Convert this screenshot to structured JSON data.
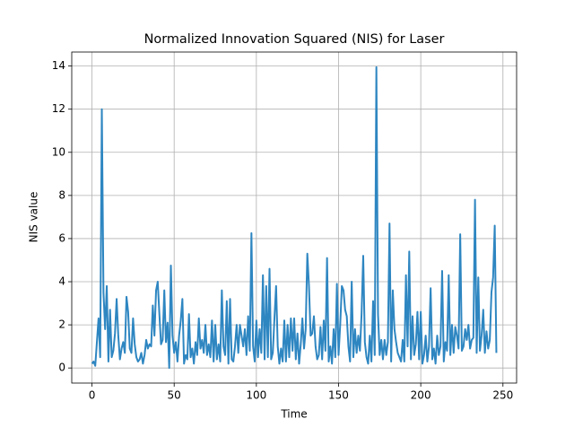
{
  "chart_data": {
    "type": "line",
    "title": "Normalized Innovation Squared (NIS) for Laser",
    "x_label": "Time",
    "y_label": "NIS value",
    "x": [
      0,
      1,
      2,
      3,
      4,
      5,
      6,
      7,
      8,
      9,
      10,
      11,
      12,
      13,
      14,
      15,
      16,
      17,
      18,
      19,
      20,
      21,
      22,
      23,
      24,
      25,
      26,
      27,
      28,
      29,
      30,
      31,
      32,
      33,
      34,
      35,
      36,
      37,
      38,
      39,
      40,
      41,
      42,
      43,
      44,
      45,
      46,
      47,
      48,
      49,
      50,
      51,
      52,
      53,
      54,
      55,
      56,
      57,
      58,
      59,
      60,
      61,
      62,
      63,
      64,
      65,
      66,
      67,
      68,
      69,
      70,
      71,
      72,
      73,
      74,
      75,
      76,
      77,
      78,
      79,
      80,
      81,
      82,
      83,
      84,
      85,
      86,
      87,
      88,
      89,
      90,
      91,
      92,
      93,
      94,
      95,
      96,
      97,
      98,
      99,
      100,
      101,
      102,
      103,
      104,
      105,
      106,
      107,
      108,
      109,
      110,
      111,
      112,
      113,
      114,
      115,
      116,
      117,
      118,
      119,
      120,
      121,
      122,
      123,
      124,
      125,
      126,
      127,
      128,
      129,
      130,
      131,
      132,
      133,
      134,
      135,
      136,
      137,
      138,
      139,
      140,
      141,
      142,
      143,
      144,
      145,
      146,
      147,
      148,
      149,
      150,
      151,
      152,
      153,
      154,
      155,
      156,
      157,
      158,
      159,
      160,
      161,
      162,
      163,
      164,
      165,
      166,
      167,
      168,
      169,
      170,
      171,
      172,
      173,
      174,
      175,
      176,
      177,
      178,
      179,
      180,
      181,
      182,
      183,
      184,
      185,
      186,
      187,
      188,
      189,
      190,
      191,
      192,
      193,
      194,
      195,
      196,
      197,
      198,
      199,
      200,
      201,
      202,
      203,
      204,
      205,
      206,
      207,
      208,
      209,
      210,
      211,
      212,
      213,
      214,
      215,
      216,
      217,
      218,
      219,
      220,
      221,
      222,
      223,
      224,
      225,
      226,
      227,
      228,
      229,
      230,
      231,
      232,
      233,
      234,
      235,
      236,
      237,
      238,
      239,
      240,
      241,
      242,
      243,
      244,
      245,
      246
    ],
    "series": [
      {
        "name": "NIS",
        "color": "#2e86c1",
        "values": [
          0.2,
          0.3,
          0.1,
          1.2,
          2.3,
          0.5,
          12.0,
          3.5,
          1.8,
          3.8,
          0.3,
          2.7,
          0.5,
          0.8,
          1.6,
          3.2,
          1.5,
          0.4,
          0.9,
          1.2,
          0.7,
          3.3,
          2.6,
          0.9,
          0.7,
          2.3,
          1.1,
          0.5,
          0.3,
          0.4,
          0.7,
          0.2,
          0.6,
          1.3,
          0.9,
          1.1,
          1.0,
          2.9,
          1.5,
          3.6,
          4.0,
          2.5,
          1.1,
          1.3,
          3.6,
          1.2,
          2.1,
          0.0,
          4.75,
          1.5,
          0.7,
          1.2,
          0.3,
          1.5,
          2.2,
          3.2,
          0.2,
          0.6,
          0.4,
          2.5,
          0.5,
          0.9,
          0.2,
          1.2,
          0.6,
          2.3,
          0.9,
          1.3,
          0.7,
          2.0,
          0.6,
          1.1,
          0.5,
          2.2,
          0.3,
          2.0,
          0.4,
          1.1,
          0.3,
          3.6,
          1.0,
          0.6,
          3.1,
          0.2,
          3.2,
          0.4,
          0.3,
          1.0,
          2.0,
          0.7,
          2.0,
          1.5,
          1.0,
          1.8,
          0.6,
          2.4,
          0.8,
          6.25,
          1.0,
          0.3,
          2.2,
          0.5,
          1.8,
          0.7,
          4.3,
          0.4,
          3.8,
          0.5,
          4.6,
          0.4,
          0.7,
          2.3,
          3.8,
          1.0,
          0.2,
          0.9,
          0.3,
          2.2,
          0.3,
          2.0,
          0.5,
          2.3,
          0.8,
          2.3,
          0.4,
          1.6,
          0.2,
          1.1,
          2.3,
          0.9,
          1.8,
          5.3,
          3.8,
          1.5,
          1.6,
          2.4,
          1.0,
          0.4,
          0.6,
          1.9,
          0.4,
          2.2,
          0.8,
          5.1,
          0.3,
          1.0,
          0.2,
          1.8,
          0.5,
          3.9,
          0.6,
          2.0,
          3.8,
          3.6,
          2.7,
          2.4,
          1.0,
          0.3,
          4.0,
          0.5,
          1.8,
          0.7,
          1.5,
          0.8,
          2.5,
          5.2,
          1.2,
          0.5,
          0.2,
          1.5,
          0.3,
          3.1,
          0.6,
          13.95,
          2.5,
          0.6,
          1.3,
          0.4,
          1.3,
          0.6,
          1.2,
          6.7,
          0.3,
          3.6,
          1.8,
          1.2,
          0.7,
          0.5,
          0.3,
          1.3,
          0.3,
          4.3,
          1.0,
          5.4,
          0.4,
          2.4,
          0.6,
          1.1,
          2.6,
          0.4,
          2.6,
          0.2,
          0.6,
          1.5,
          0.3,
          1.0,
          3.7,
          0.4,
          0.9,
          0.2,
          1.5,
          0.6,
          1.0,
          4.5,
          0.3,
          1.2,
          0.8,
          4.3,
          0.6,
          2.0,
          0.7,
          1.9,
          1.5,
          0.9,
          6.2,
          0.8,
          1.0,
          1.8,
          1.3,
          2.0,
          0.9,
          1.3,
          1.4,
          7.8,
          0.7,
          4.2,
          0.8,
          1.5,
          2.7,
          0.7,
          1.7,
          0.9,
          1.3,
          3.5,
          4.2,
          6.6,
          0.7
        ]
      }
    ],
    "xlim": [
      -12.3,
      258.3
    ],
    "xticks": [
      0,
      50,
      100,
      150,
      200,
      250
    ],
    "ylim": [
      -0.7,
      14.65
    ],
    "yticks": [
      0,
      2,
      4,
      6,
      8,
      10,
      12,
      14
    ],
    "grid": true
  }
}
